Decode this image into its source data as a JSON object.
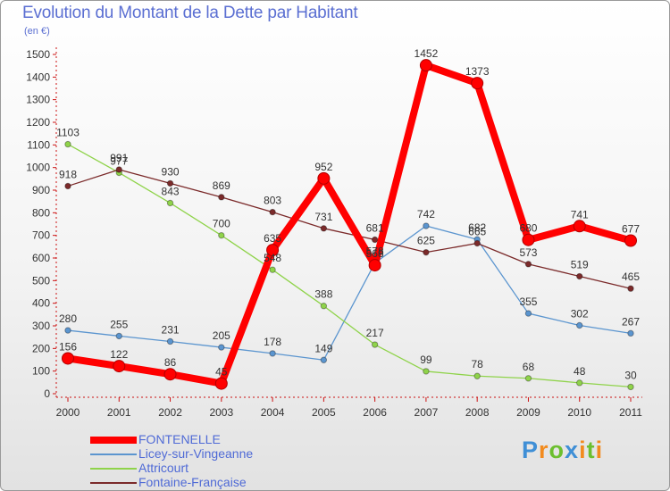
{
  "header": {
    "title": "Evolution du Montant de la Dette par Habitant",
    "subtitle": "(en €)"
  },
  "logo": {
    "text": "Proxiti",
    "letters": [
      {
        "ch": "P",
        "color": "#3f8fd6"
      },
      {
        "ch": "r",
        "color": "#f28b1e"
      },
      {
        "ch": "o",
        "color": "#6cbf2f"
      },
      {
        "ch": "x",
        "color": "#3f8fd6"
      },
      {
        "ch": "i",
        "color": "#f28b1e"
      },
      {
        "ch": "t",
        "color": "#6cbf2f"
      },
      {
        "ch": "i",
        "color": "#f28b1e"
      }
    ]
  },
  "chart_data": {
    "type": "line",
    "x": [
      "2000",
      "2001",
      "2002",
      "2003",
      "2004",
      "2005",
      "2006",
      "2007",
      "2008",
      "2009",
      "2010",
      "2011"
    ],
    "ylim": [
      0,
      1500
    ],
    "yticks": [
      0,
      100,
      200,
      300,
      400,
      500,
      600,
      700,
      800,
      900,
      1000,
      1100,
      1200,
      1300,
      1400,
      1500
    ],
    "grid": false,
    "legend_position": "bottom-left",
    "series": [
      {
        "name": "Licey-sur-Vingeanne",
        "color": "#5b95cf",
        "values": [
          280,
          255,
          231,
          205,
          178,
          149,
          578,
          742,
          682,
          355,
          302,
          267
        ]
      },
      {
        "name": "Attricourt",
        "color": "#8fd34a",
        "values": [
          1103,
          977,
          843,
          700,
          548,
          388,
          217,
          99,
          78,
          68,
          48,
          30
        ]
      },
      {
        "name": "Fontaine-Française",
        "color": "#7b2a2a",
        "values": [
          918,
          991,
          930,
          869,
          803,
          731,
          681,
          625,
          665,
          573,
          519,
          465
        ]
      },
      {
        "name": "FONTENELLE",
        "color": "#ff0000",
        "emphasis": true,
        "values": [
          156,
          122,
          86,
          45,
          635,
          952,
          568,
          1452,
          1373,
          680,
          741,
          677
        ]
      }
    ],
    "legend_order": [
      "FONTENELLE",
      "Licey-sur-Vingeanne",
      "Attricourt",
      "Fontaine-Française"
    ]
  }
}
